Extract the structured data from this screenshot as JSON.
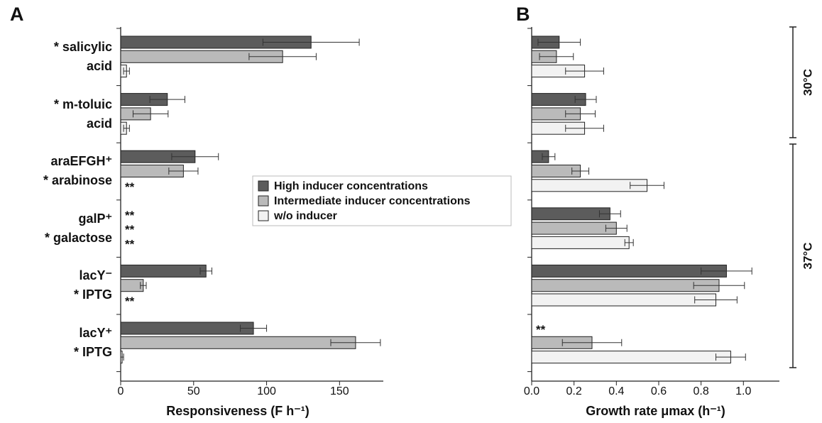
{
  "chart_data": [
    {
      "type": "barh",
      "panel_label": "A",
      "xlabel": "Responsiveness (F h⁻¹)",
      "categories": [
        "* salicylic\nacid",
        "* m-toluic\nacid",
        "araEFGH⁺\n* arabinose",
        "galP⁺\n* galactose",
        "lacY⁻\n* IPTG",
        "lacY⁺\n* IPTG"
      ],
      "xlim": [
        0,
        180
      ],
      "xticks": [
        0,
        50,
        100,
        150
      ],
      "legend": "center",
      "series": [
        {
          "name": "High inducer concentrations",
          "color": "#5c5c5c",
          "values": [
            130.5,
            32,
            51,
            null,
            58.5,
            91
          ],
          "errors": [
            33,
            12,
            16,
            null,
            4,
            9
          ],
          "value_labels": [
            null,
            null,
            null,
            "**",
            null,
            null
          ]
        },
        {
          "name": "Intermediate inducer concentrations",
          "color": "#bababa",
          "values": [
            111,
            20.5,
            43,
            null,
            15.5,
            161
          ],
          "errors": [
            23,
            12,
            10,
            null,
            2,
            17
          ],
          "value_labels": [
            null,
            null,
            null,
            "**",
            null,
            null
          ]
        },
        {
          "name": "w/o inducer",
          "color": "#f2f2f2",
          "values": [
            4,
            4,
            null,
            null,
            null,
            1
          ],
          "errors": [
            2,
            2,
            null,
            null,
            null,
            1
          ],
          "value_labels": [
            null,
            null,
            "**",
            "**",
            "**",
            null
          ]
        }
      ]
    },
    {
      "type": "barh",
      "panel_label": "B",
      "xlabel": "Growth rate μmax (h⁻¹)",
      "xlim": [
        0,
        1.17
      ],
      "xticks": [
        {
          "value": 0,
          "label": "0.0"
        },
        0.2,
        0.4,
        0.6,
        0.8,
        {
          "value": 1,
          "label": "1.0"
        }
      ],
      "annotations": [
        "30°C",
        "37°C"
      ],
      "series": [
        {
          "color": "#5c5c5c",
          "values": [
            0.13,
            0.255,
            0.08,
            0.37,
            0.92,
            null
          ],
          "errors": [
            0.1,
            0.05,
            0.03,
            0.05,
            0.12,
            null
          ],
          "value_labels": [
            null,
            null,
            null,
            null,
            null,
            "**"
          ]
        },
        {
          "color": "#bababa",
          "values": [
            0.117,
            0.23,
            0.23,
            0.4,
            0.885,
            0.285
          ],
          "errors": [
            0.08,
            0.07,
            0.04,
            0.05,
            0.12,
            0.14
          ]
        },
        {
          "color": "#f2f2f2",
          "values": [
            0.25,
            0.25,
            0.545,
            0.46,
            0.87,
            0.94
          ],
          "errors": [
            0.09,
            0.09,
            0.08,
            0.02,
            0.1,
            0.07
          ]
        }
      ]
    }
  ]
}
